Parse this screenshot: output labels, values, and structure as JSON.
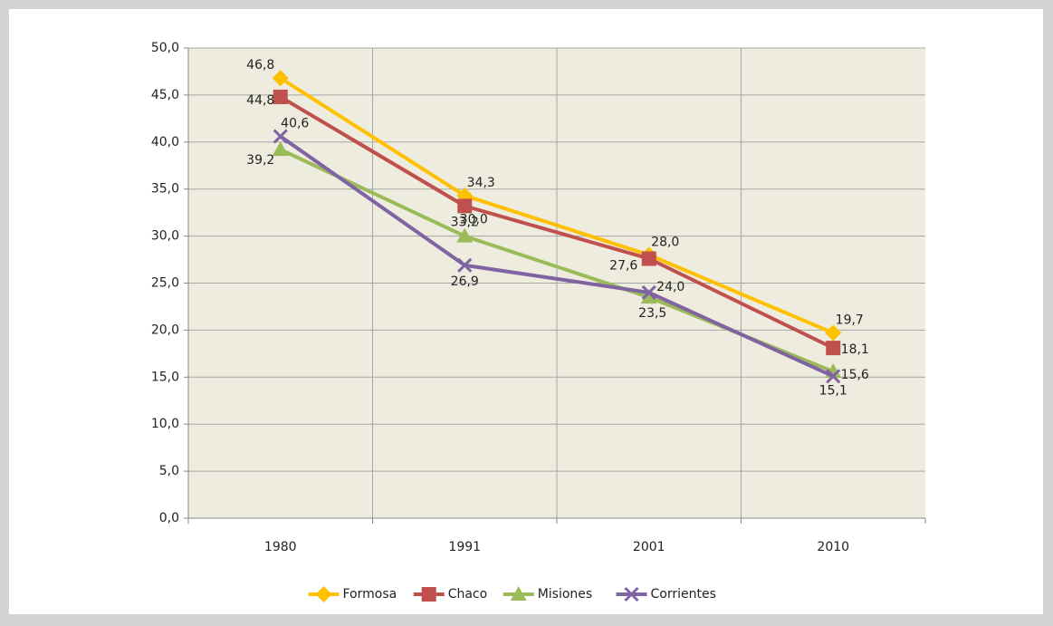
{
  "chart_data": {
    "type": "line",
    "categories": [
      "1980",
      "1991",
      "2001",
      "2010"
    ],
    "series": [
      {
        "name": "Formosa",
        "color": "#ffc000",
        "values": [
          46.8,
          34.3,
          28.0,
          19.7
        ],
        "value_labels": [
          "46,8",
          "34,3",
          "28,0",
          "19,7"
        ]
      },
      {
        "name": "Chaco",
        "color": "#c0504d",
        "values": [
          44.8,
          33.2,
          27.6,
          18.1
        ],
        "value_labels": [
          "44,8",
          "33,2",
          "27,6",
          "18,1"
        ]
      },
      {
        "name": "Misiones",
        "color": "#9bbb59",
        "values": [
          39.2,
          30.0,
          23.5,
          15.6
        ],
        "value_labels": [
          "39,2",
          "30,0",
          "23,5",
          "15,6"
        ]
      },
      {
        "name": "Corrientes",
        "color": "#8064a2",
        "values": [
          40.6,
          26.9,
          24.0,
          15.1
        ],
        "value_labels": [
          "40,6",
          "26,9",
          "24,0",
          "15,1"
        ]
      }
    ],
    "ylim": [
      0,
      50
    ],
    "yticks": [
      {
        "value": 0,
        "label": "0,0"
      },
      {
        "value": 5,
        "label": "5,0"
      },
      {
        "value": 10,
        "label": "10,0"
      },
      {
        "value": 15,
        "label": "15,0"
      },
      {
        "value": 20,
        "label": "20,0"
      },
      {
        "value": 25,
        "label": "25,0"
      },
      {
        "value": 30,
        "label": "30,0"
      },
      {
        "value": 35,
        "label": "35,0"
      },
      {
        "value": 40,
        "label": "40,0"
      },
      {
        "value": 45,
        "label": "45,0"
      },
      {
        "value": 50,
        "label": "50,0"
      }
    ],
    "grid": true,
    "legend": "bottom"
  }
}
